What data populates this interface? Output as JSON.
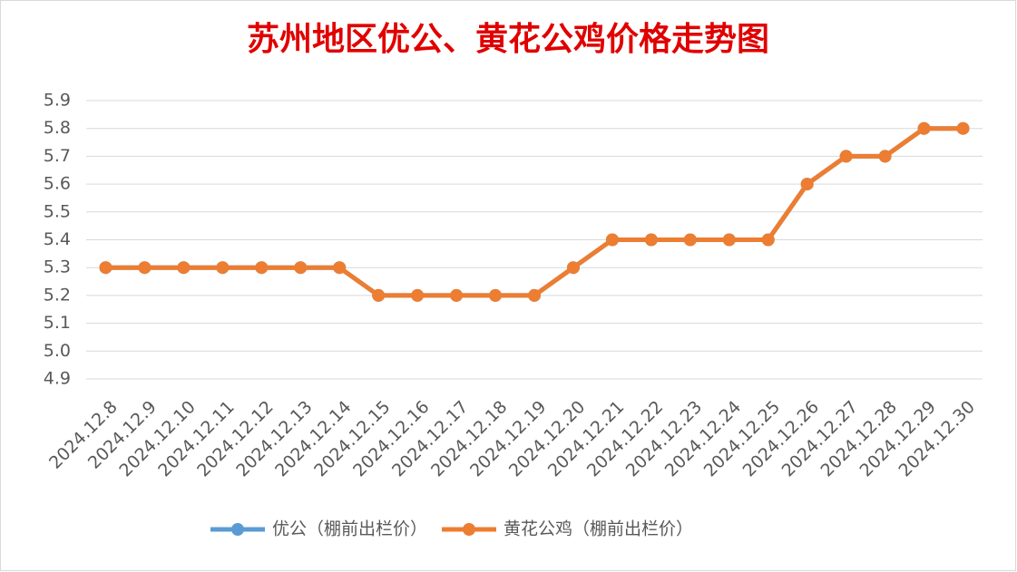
{
  "chart_data": {
    "type": "line",
    "title": "苏州地区优公、黄花公鸡价格走势图",
    "categories": [
      "2024.12.8",
      "2024.12.9",
      "2024.12.10",
      "2024.12.11",
      "2024.12.12",
      "2024.12.13",
      "2024.12.14",
      "2024.12.15",
      "2024.12.16",
      "2024.12.17",
      "2024.12.18",
      "2024.12.19",
      "2024.12.20",
      "2024.12.21",
      "2024.12.22",
      "2024.12.23",
      "2024.12.24",
      "2024.12.25",
      "2024.12.26",
      "2024.12.27",
      "2024.12.28",
      "2024.12.29",
      "2024.12.30"
    ],
    "series": [
      {
        "name": "优公（棚前出栏价）",
        "color": "#5b9bd5",
        "values": [
          5.3,
          5.3,
          5.3,
          5.3,
          5.3,
          5.3,
          5.3,
          5.2,
          5.2,
          5.2,
          5.2,
          5.2,
          5.3,
          5.4,
          5.4,
          5.4,
          5.4,
          5.4,
          5.6,
          5.7,
          5.7,
          5.8,
          5.8
        ]
      },
      {
        "name": "黄花公鸡（棚前出栏价）",
        "color": "#ed7d31",
        "values": [
          5.3,
          5.3,
          5.3,
          5.3,
          5.3,
          5.3,
          5.3,
          5.2,
          5.2,
          5.2,
          5.2,
          5.2,
          5.3,
          5.4,
          5.4,
          5.4,
          5.4,
          5.4,
          5.6,
          5.7,
          5.7,
          5.8,
          5.8
        ]
      }
    ],
    "ylim": [
      4.9,
      5.9
    ],
    "yticks": [
      4.9,
      {
        "value": 5,
        "label": "5.0"
      },
      5.1,
      5.2,
      5.3,
      5.4,
      5.5,
      5.6,
      5.7,
      5.8,
      5.9
    ],
    "grid": true,
    "legend": "bottom"
  }
}
